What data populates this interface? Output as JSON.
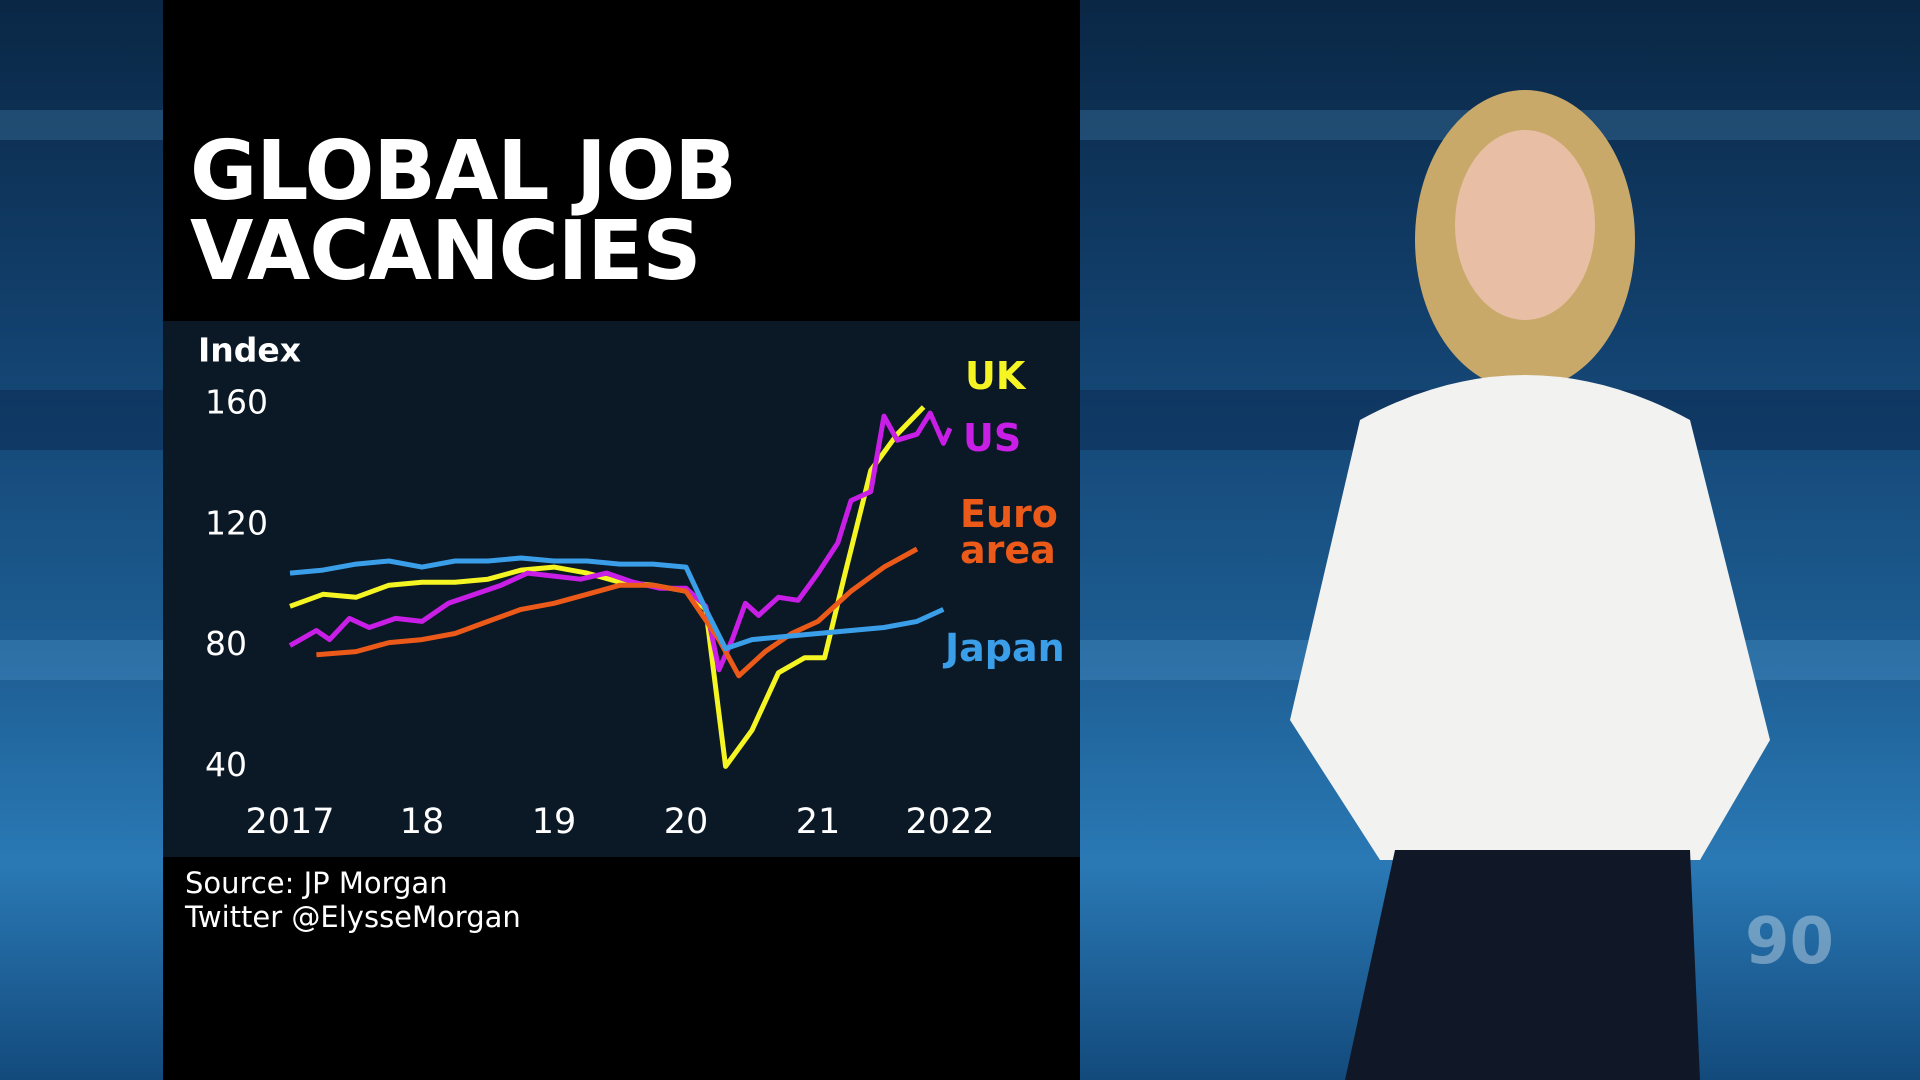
{
  "chart_data": {
    "type": "line",
    "title": "GLOBAL JOB VACANCIES",
    "y_label": "Index",
    "ylim": [
      35,
      165
    ],
    "yticks": [
      40,
      80,
      120,
      160
    ],
    "xlim": [
      2016.7,
      2022.7
    ],
    "xticks": [
      2017,
      {
        "value": 2018,
        "label": "18"
      },
      {
        "value": 2019,
        "label": "19"
      },
      {
        "value": 2020,
        "label": "20"
      },
      {
        "value": 2021,
        "label": "21"
      },
      2022
    ],
    "series": [
      {
        "name": "UK",
        "color": "#f5f523",
        "x": [
          2017.0,
          2017.25,
          2017.5,
          2017.75,
          2018.0,
          2018.25,
          2018.5,
          2018.75,
          2019.0,
          2019.25,
          2019.5,
          2019.75,
          2020.0,
          2020.15,
          2020.3,
          2020.5,
          2020.7,
          2020.9,
          2021.05,
          2021.2,
          2021.4,
          2021.6,
          2021.8
        ],
        "values": [
          93,
          97,
          96,
          100,
          101,
          101,
          102,
          105,
          106,
          104,
          101,
          100,
          98,
          92,
          40,
          52,
          71,
          76,
          76,
          103,
          138,
          150,
          159
        ]
      },
      {
        "name": "US",
        "color": "#c81ee6",
        "x": [
          2017.0,
          2017.2,
          2017.3,
          2017.45,
          2017.6,
          2017.8,
          2018.0,
          2018.2,
          2018.4,
          2018.6,
          2018.8,
          2019.0,
          2019.2,
          2019.4,
          2019.6,
          2019.8,
          2020.0,
          2020.15,
          2020.25,
          2020.35,
          2020.45,
          2020.55,
          2020.7,
          2020.85,
          2021.0,
          2021.15,
          2021.25,
          2021.4,
          2021.5,
          2021.6,
          2021.75,
          2021.85,
          2021.95,
          2022.0
        ],
        "values": [
          80,
          85,
          82,
          89,
          86,
          89,
          88,
          94,
          97,
          100,
          104,
          103,
          102,
          104,
          101,
          99,
          99,
          93,
          72,
          82,
          94,
          90,
          96,
          95,
          104,
          114,
          128,
          131,
          156,
          148,
          150,
          157,
          147,
          152
        ]
      },
      {
        "name": "Euro area",
        "color": "#ec5a1a",
        "x": [
          2017.2,
          2017.5,
          2017.75,
          2018.0,
          2018.25,
          2018.5,
          2018.75,
          2019.0,
          2019.25,
          2019.5,
          2019.75,
          2020.0,
          2020.25,
          2020.4,
          2020.6,
          2020.8,
          2021.0,
          2021.25,
          2021.5,
          2021.75
        ],
        "values": [
          77,
          78,
          81,
          82,
          84,
          88,
          92,
          94,
          97,
          100,
          100,
          98,
          82,
          70,
          78,
          84,
          88,
          98,
          106,
          112
        ]
      },
      {
        "name": "Japan",
        "color": "#3b9ee8",
        "x": [
          2017.0,
          2017.25,
          2017.5,
          2017.75,
          2018.0,
          2018.25,
          2018.5,
          2018.75,
          2019.0,
          2019.25,
          2019.5,
          2019.75,
          2020.0,
          2020.15,
          2020.3,
          2020.5,
          2020.75,
          2021.0,
          2021.25,
          2021.5,
          2021.75,
          2021.95
        ],
        "values": [
          104,
          105,
          107,
          108,
          106,
          108,
          108,
          109,
          108,
          108,
          107,
          107,
          106,
          92,
          79,
          82,
          83,
          84,
          85,
          86,
          88,
          92
        ]
      }
    ],
    "source": "Source: JP Morgan",
    "credit": "Twitter @ElysseMorgan",
    "logo": "90"
  }
}
